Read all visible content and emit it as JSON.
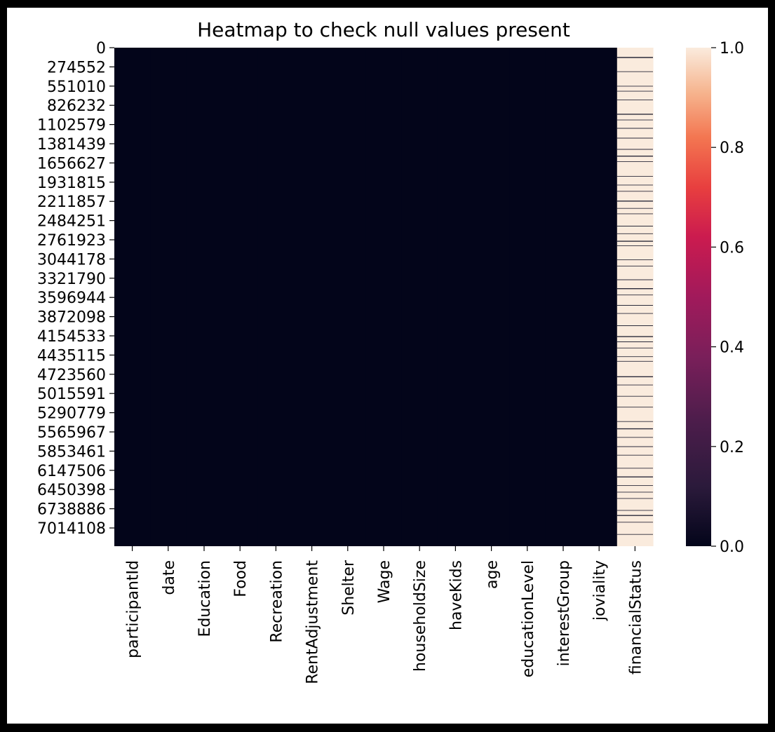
{
  "chart_data": {
    "type": "heatmap",
    "title": "Heatmap to check null values present",
    "xlabel": "",
    "ylabel": "",
    "x_categories": [
      "participantId",
      "date",
      "Education",
      "Food",
      "Recreation",
      "RentAdjustment",
      "Shelter",
      "Wage",
      "householdSize",
      "haveKids",
      "age",
      "educationLevel",
      "interestGroup",
      "joviality",
      "financialStatus"
    ],
    "y_tick_labels": [
      "0",
      "274552",
      "551010",
      "826232",
      "1102579",
      "1381439",
      "1656627",
      "1931815",
      "2211857",
      "2484251",
      "2761923",
      "3044178",
      "3321790",
      "3596944",
      "3872098",
      "4154533",
      "4435115",
      "4723560",
      "5015591",
      "5290779",
      "5565967",
      "5853461",
      "6147506",
      "6450398",
      "6738886",
      "7014108"
    ],
    "null_fraction_by_column": [
      0,
      0,
      0,
      0,
      0,
      0,
      0,
      0,
      0,
      0,
      0,
      0,
      0,
      0,
      0.97
    ],
    "colorbar": {
      "range": [
        0.0,
        1.0
      ],
      "ticks": [
        "0.0",
        "0.2",
        "0.4",
        "0.6",
        "0.8",
        "1.0"
      ],
      "colormap": "rocket",
      "low_color": "#03051a",
      "high_color": "#faebdd"
    },
    "grid": false
  }
}
